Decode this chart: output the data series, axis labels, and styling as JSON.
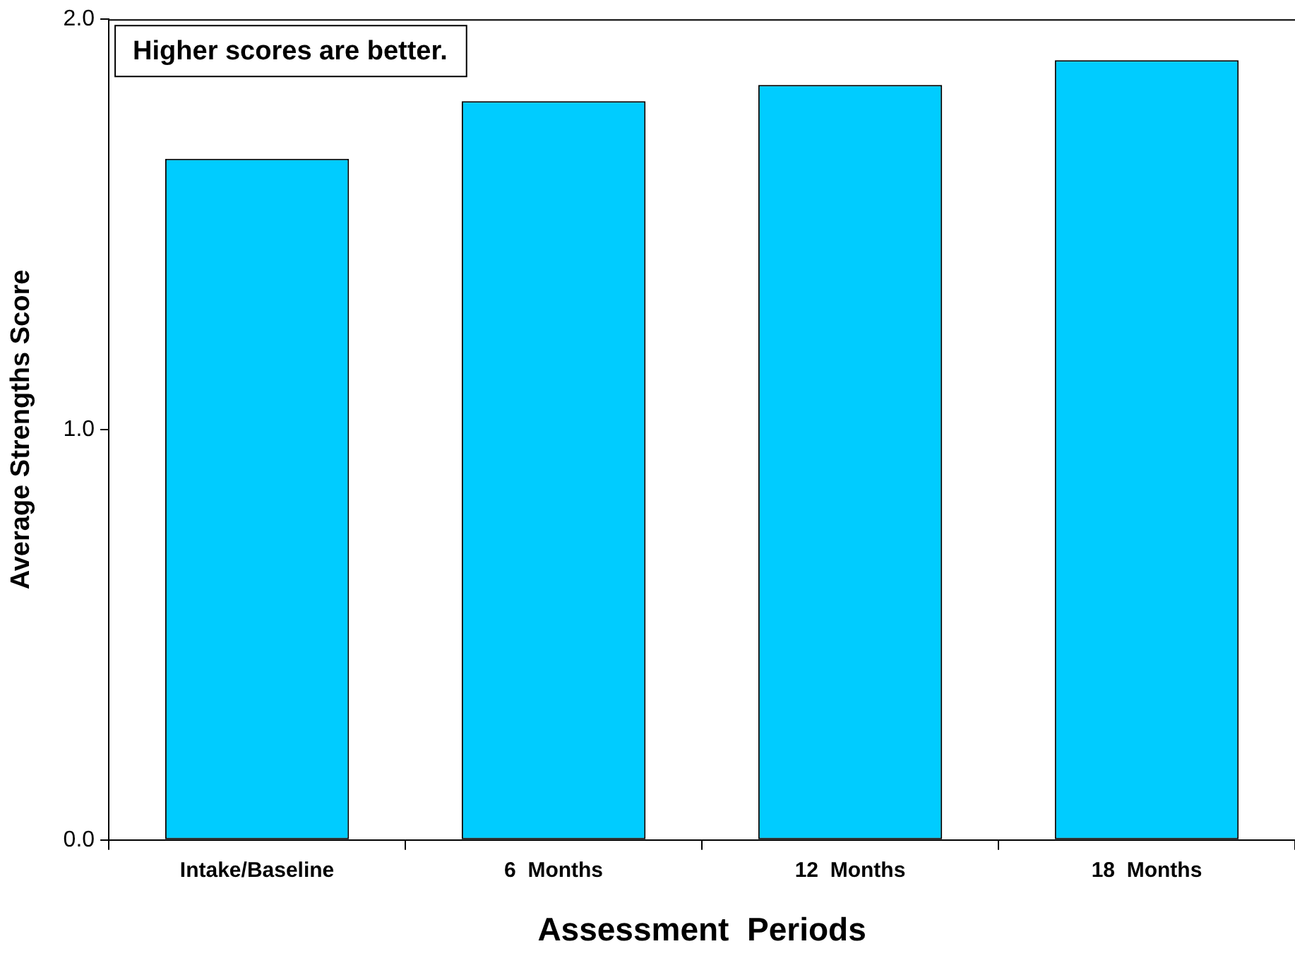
{
  "chart_data": {
    "type": "bar",
    "xlabel": "Assessment  Periods",
    "ylabel": "Average Strengths Score",
    "categories": [
      "Intake/Baseline",
      "6  Months",
      "12  Months",
      "18  Months"
    ],
    "values": [
      1.66,
      1.8,
      1.84,
      1.9
    ],
    "color": "#00ccff",
    "ylim": [
      0,
      2
    ],
    "yticks": [
      {
        "value": 0,
        "label": "0.0"
      },
      {
        "value": 1,
        "label": "1.0"
      },
      {
        "value": 2,
        "label": "2.0"
      }
    ],
    "grid": false,
    "legend": false,
    "annotations": [
      "Higher scores are better."
    ]
  }
}
